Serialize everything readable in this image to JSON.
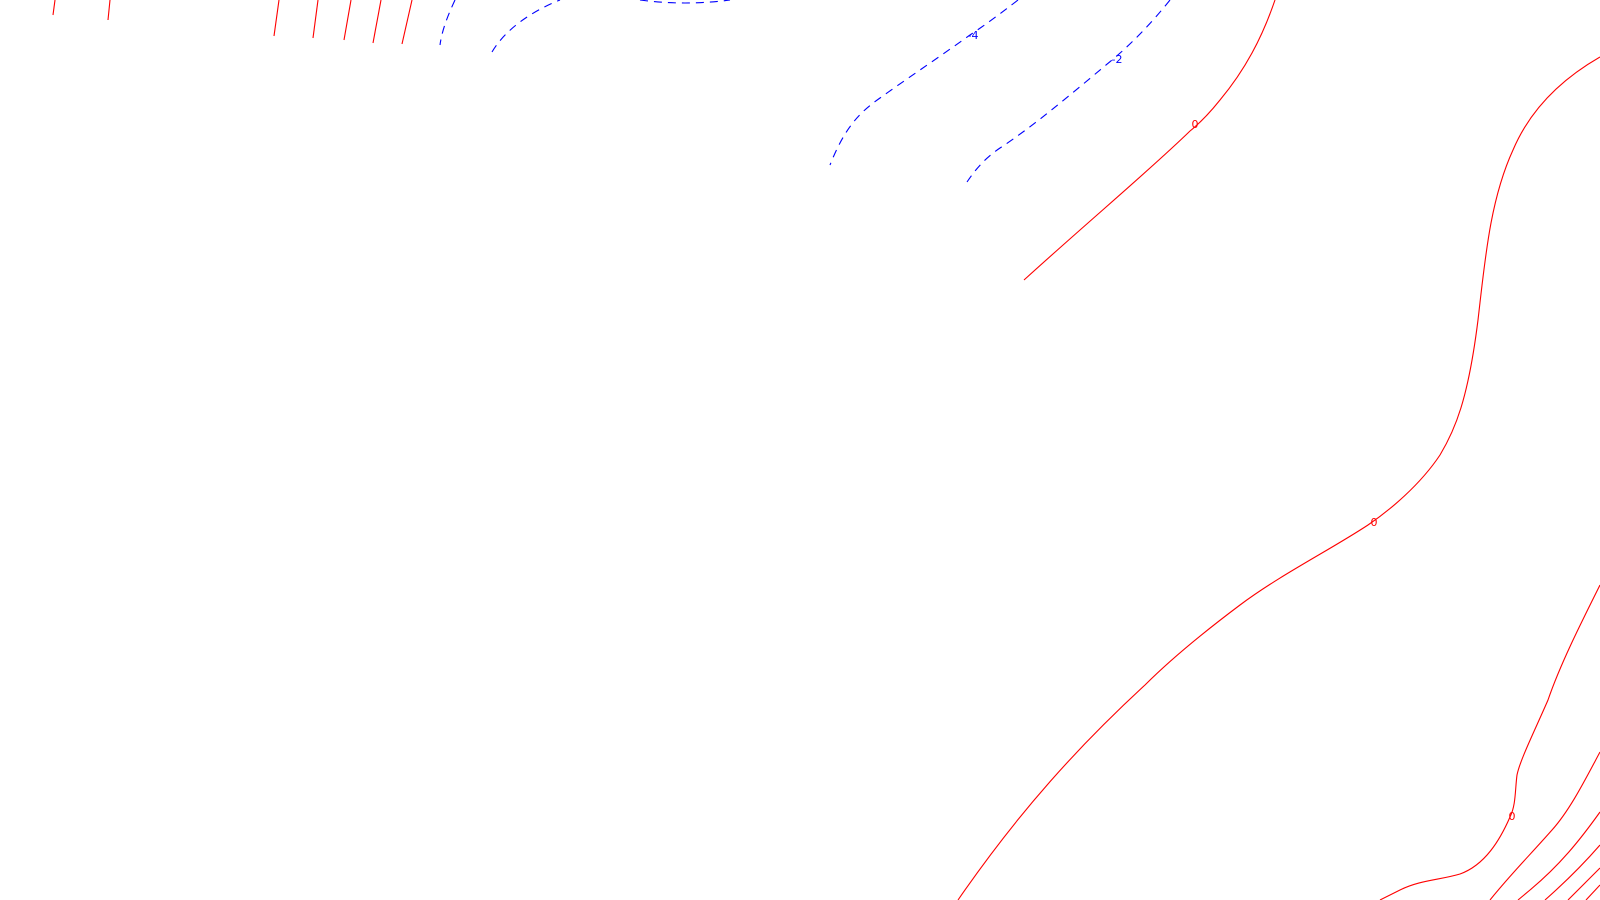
{
  "map": {
    "background_color": "#ffffff",
    "positive_contour_color": "#ff0000",
    "negative_contour_color": "#0000ff",
    "negative_line_style": "dashed",
    "contour_labels": {
      "neg4": "-4",
      "neg2": "-2",
      "zero_a": "0",
      "zero_b": "0",
      "zero_c": "0"
    }
  }
}
